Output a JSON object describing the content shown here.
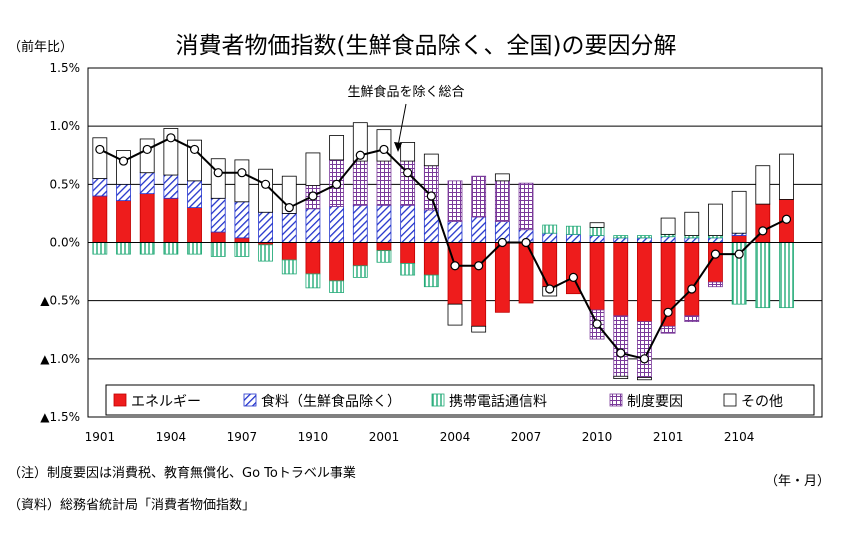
{
  "chart_data": {
    "type": "bar",
    "title": "消費者物価指数(生鮮食品除く、全国)の要因分解",
    "yunit": "（前年比）",
    "xunit": "（年・月）",
    "ylim": [
      -1.5,
      1.5
    ],
    "y_ticks": [
      {
        "value": 1.5,
        "label": "1.5%"
      },
      {
        "value": 1.0,
        "label": "1.0%"
      },
      {
        "value": 0.5,
        "label": "0.5%"
      },
      {
        "value": 0.0,
        "label": "0.0%"
      },
      {
        "value": -0.5,
        "label": "▲0.5%"
      },
      {
        "value": -1.0,
        "label": "▲1.0%"
      },
      {
        "value": -1.5,
        "label": "▲1.5%"
      }
    ],
    "x_tick_labels": [
      {
        "index": 0,
        "label": "1901"
      },
      {
        "index": 3,
        "label": "1904"
      },
      {
        "index": 6,
        "label": "1907"
      },
      {
        "index": 9,
        "label": "1910"
      },
      {
        "index": 12,
        "label": "2001"
      },
      {
        "index": 15,
        "label": "2004"
      },
      {
        "index": 18,
        "label": "2007"
      },
      {
        "index": 21,
        "label": "2010"
      },
      {
        "index": 24,
        "label": "2101"
      },
      {
        "index": 27,
        "label": "2104"
      }
    ],
    "categories": [
      "1901",
      "1902",
      "1903",
      "1904",
      "1905",
      "1906",
      "1907",
      "1908",
      "1909",
      "1910",
      "1911",
      "1912",
      "2001",
      "2002",
      "2003",
      "2004",
      "2005",
      "2006",
      "2007",
      "2008",
      "2009",
      "2010",
      "2011",
      "2012",
      "2101",
      "2102",
      "2103",
      "2104",
      "2105",
      "2106",
      "2107"
    ],
    "series": [
      {
        "name": "エネルギー",
        "color": "#ee1c1c",
        "pattern": "solid",
        "values": [
          0.4,
          0.36,
          0.42,
          0.38,
          0.3,
          0.09,
          0.04,
          -0.02,
          -0.15,
          -0.27,
          -0.33,
          -0.2,
          -0.07,
          -0.18,
          -0.28,
          -0.53,
          -0.72,
          -0.6,
          -0.52,
          -0.38,
          -0.44,
          -0.58,
          -0.63,
          -0.68,
          -0.72,
          -0.63,
          -0.34,
          0.06,
          0.33,
          0.37,
          0
        ]
      },
      {
        "name": "食料（生鮮食品除く）",
        "color": "#2233cc",
        "pattern": "diagonal",
        "values": [
          0.15,
          0.14,
          0.18,
          0.2,
          0.23,
          0.29,
          0.31,
          0.26,
          0.25,
          0.29,
          0.31,
          0.32,
          0.32,
          0.32,
          0.28,
          0.18,
          0.22,
          0.18,
          0.11,
          0.08,
          0.07,
          0.06,
          0.04,
          0.04,
          0.05,
          0.04,
          0.04,
          0.02,
          0,
          0,
          0
        ]
      },
      {
        "name": "携帯電話通信料",
        "color": "#22aa77",
        "pattern": "vertical",
        "values": [
          -0.1,
          -0.1,
          -0.1,
          -0.1,
          -0.1,
          -0.12,
          -0.12,
          -0.14,
          -0.12,
          -0.12,
          -0.1,
          -0.1,
          -0.1,
          -0.1,
          -0.1,
          0,
          0,
          0,
          0,
          0.07,
          0.07,
          0.07,
          0.02,
          0.02,
          0.02,
          0.02,
          0.02,
          -0.53,
          -0.56,
          -0.56,
          0
        ]
      },
      {
        "name": "制度要因",
        "color": "#7a3a9a",
        "pattern": "grid",
        "values": [
          0,
          0,
          0,
          0,
          0,
          0,
          0,
          0,
          0,
          0.2,
          0.4,
          0.38,
          0.38,
          0.38,
          0.38,
          0.35,
          0.35,
          0.35,
          0.4,
          0,
          0,
          -0.25,
          -0.52,
          -0.48,
          -0.06,
          -0.05,
          -0.04,
          0,
          0,
          0,
          0
        ]
      },
      {
        "name": "その他",
        "color": "#000000",
        "pattern": "white",
        "values": [
          0.35,
          0.29,
          0.29,
          0.4,
          0.35,
          0.34,
          0.36,
          0.37,
          0.32,
          0.28,
          0.21,
          0.33,
          0.27,
          0.16,
          0.1,
          -0.18,
          -0.05,
          0.06,
          0,
          -0.08,
          0,
          0.04,
          -0.02,
          -0.02,
          0.14,
          0.2,
          0.27,
          0.36,
          0.33,
          0.39,
          0
        ]
      }
    ],
    "total": {
      "name": "生鮮食品を除く総合",
      "values": [
        0.8,
        0.7,
        0.8,
        0.9,
        0.8,
        0.6,
        0.6,
        0.5,
        0.3,
        0.4,
        0.5,
        0.75,
        0.8,
        0.6,
        0.4,
        -0.2,
        -0.2,
        0,
        0,
        -0.4,
        -0.3,
        -0.7,
        -0.95,
        -1.0,
        -0.6,
        -0.4,
        -0.1,
        -0.1,
        0.1,
        0.2,
        null
      ]
    },
    "legend_position": "bottom",
    "grid": true
  },
  "notes": {
    "note1": "（注）制度要因は消費税、教育無償化、Go Toトラベル事業",
    "note2": "（資料）総務省統計局「消費者物価指数」"
  }
}
